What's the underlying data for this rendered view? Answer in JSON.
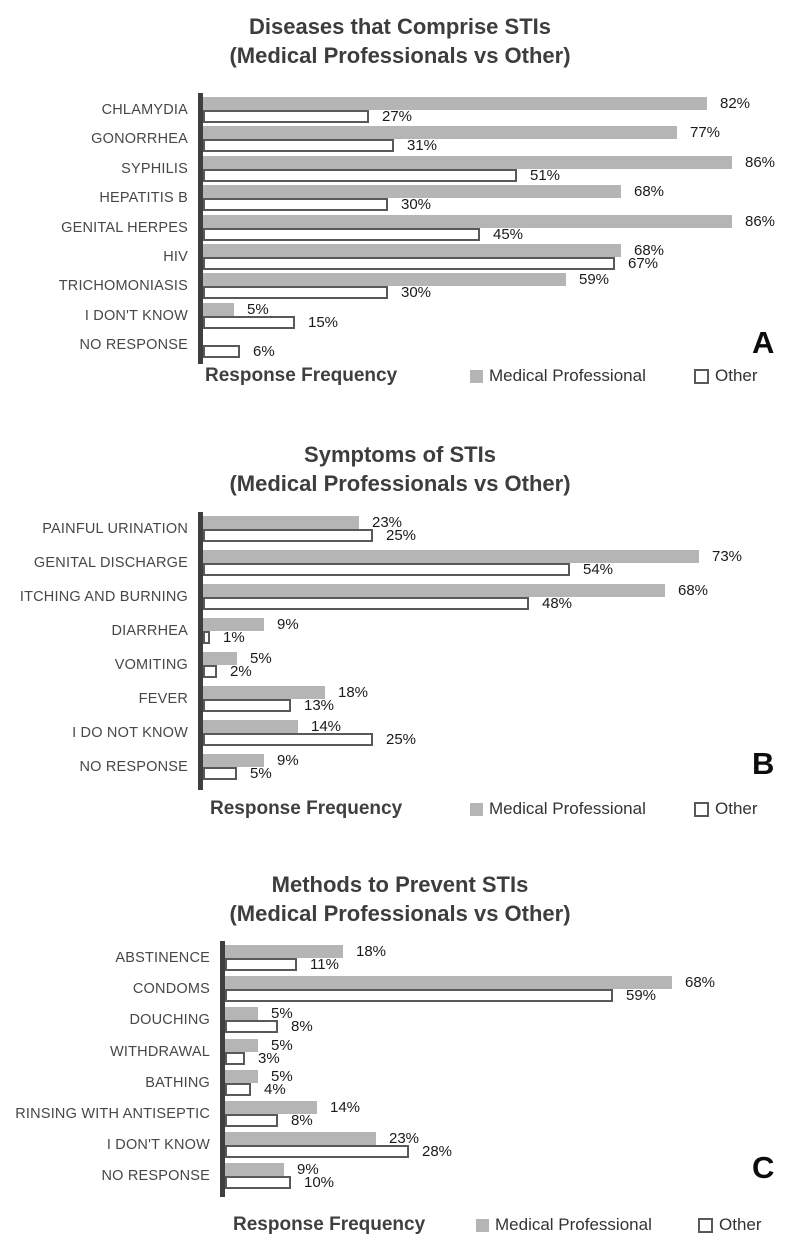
{
  "colors": {
    "medical_bar_fill": "#b5b5b5",
    "other_bar_fill": "#ffffff",
    "other_bar_border": "#595959",
    "axis_line": "#3f3f3f",
    "title_text": "#3d3d3d",
    "category_text": "#474747",
    "value_text": "#1a1a1a"
  },
  "chart_data": [
    {
      "panel": "A",
      "type": "bar",
      "orientation": "horizontal",
      "title": "Diseases that Comprise STIs",
      "subtitle": "(Medical Professionals vs Other)",
      "xlabel": "Response Frequency",
      "unit": "%",
      "xlim": [
        0,
        100
      ],
      "grid": false,
      "legend_position": "bottom",
      "legend": [
        "Medical Professional",
        "Other"
      ],
      "categories": [
        "CHLAMYDIA",
        "GONORRHEA",
        "SYPHILIS",
        "HEPATITIS B",
        "GENITAL HERPES",
        "HIV",
        "TRICHOMONIASIS",
        "I DON'T KNOW",
        "NO RESPONSE"
      ],
      "series": [
        {
          "name": "Medical Professional",
          "values": [
            82,
            77,
            86,
            68,
            86,
            68,
            59,
            5,
            null
          ],
          "labels": [
            "82%",
            "77%",
            "86%",
            "68%",
            "86%",
            "68%",
            "59%",
            "5%",
            ""
          ]
        },
        {
          "name": "Other",
          "values": [
            27,
            31,
            51,
            30,
            45,
            67,
            30,
            15,
            6
          ],
          "labels": [
            "27%",
            "31%",
            "51%",
            "30%",
            "45%",
            "67%",
            "30%",
            "15%",
            "6%"
          ]
        }
      ]
    },
    {
      "panel": "B",
      "type": "bar",
      "orientation": "horizontal",
      "title": "Symptoms of STIs",
      "subtitle": "(Medical Professionals vs Other)",
      "xlabel": "Response Frequency",
      "unit": "%",
      "xlim": [
        0,
        100
      ],
      "grid": false,
      "legend_position": "bottom",
      "legend": [
        "Medical Professional",
        "Other"
      ],
      "categories": [
        "PAINFUL URINATION",
        "GENITAL DISCHARGE",
        "ITCHING AND BURNING",
        "DIARRHEA",
        "VOMITING",
        "FEVER",
        "I DO NOT KNOW",
        "NO RESPONSE"
      ],
      "series": [
        {
          "name": "Medical Professional",
          "values": [
            23,
            73,
            68,
            9,
            5,
            18,
            14,
            9
          ],
          "labels": [
            "23%",
            "73%",
            "68%",
            "9%",
            "5%",
            "18%",
            "14%",
            "9%"
          ]
        },
        {
          "name": "Other",
          "values": [
            25,
            54,
            48,
            1,
            2,
            13,
            25,
            5
          ],
          "labels": [
            "25%",
            "54%",
            "48%",
            "1%",
            "2%",
            "13%",
            "25%",
            "5%"
          ]
        }
      ]
    },
    {
      "panel": "C",
      "type": "bar",
      "orientation": "horizontal",
      "title": "Methods to Prevent STIs",
      "subtitle": "(Medical Professionals vs Other)",
      "xlabel": "Response Frequency",
      "unit": "%",
      "xlim": [
        0,
        100
      ],
      "grid": false,
      "legend_position": "bottom",
      "legend": [
        "Medical Professional",
        "Other"
      ],
      "categories": [
        "ABSTINENCE",
        "CONDOMS",
        "DOUCHING",
        "WITHDRAWAL",
        "BATHING",
        "RINSING WITH ANTISEPTIC",
        "I DON'T KNOW",
        "NO RESPONSE"
      ],
      "series": [
        {
          "name": "Medical Professional",
          "values": [
            18,
            68,
            5,
            5,
            5,
            14,
            23,
            9
          ],
          "labels": [
            "18%",
            "68%",
            "5%",
            "5%",
            "5%",
            "14%",
            "23%",
            "9%"
          ]
        },
        {
          "name": "Other",
          "values": [
            11,
            59,
            8,
            3,
            4,
            8,
            28,
            10
          ],
          "labels": [
            "11%",
            "59%",
            "8%",
            "3%",
            "4%",
            "8%",
            "28%",
            "10%"
          ]
        }
      ]
    }
  ]
}
